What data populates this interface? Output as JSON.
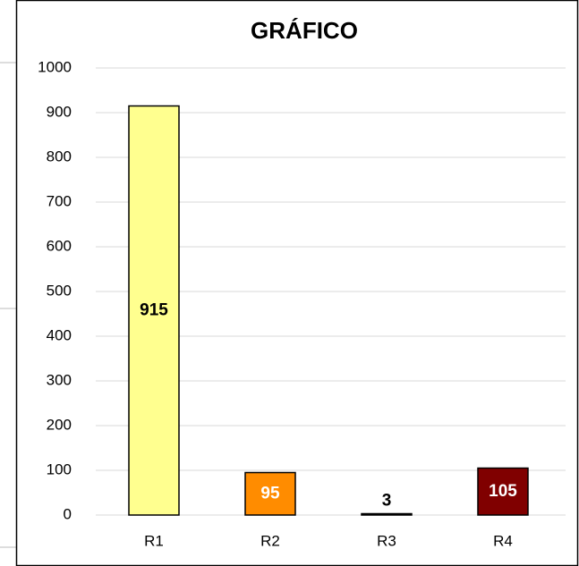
{
  "chart_data": {
    "type": "bar",
    "title": "GRÁFICO",
    "categories": [
      "R1",
      "R2",
      "R3",
      "R4"
    ],
    "values": [
      915,
      95,
      3,
      105
    ],
    "colors": [
      "#ffff8f",
      "#ff8c00",
      "#ffe600",
      "#800000"
    ],
    "label_colors": [
      "#000000",
      "#ffffff",
      "#000000",
      "#ffffff"
    ],
    "ylim": [
      0,
      1000
    ],
    "yticks": [
      0,
      100,
      200,
      300,
      400,
      500,
      600,
      700,
      800,
      900,
      1000
    ],
    "grid": true
  }
}
